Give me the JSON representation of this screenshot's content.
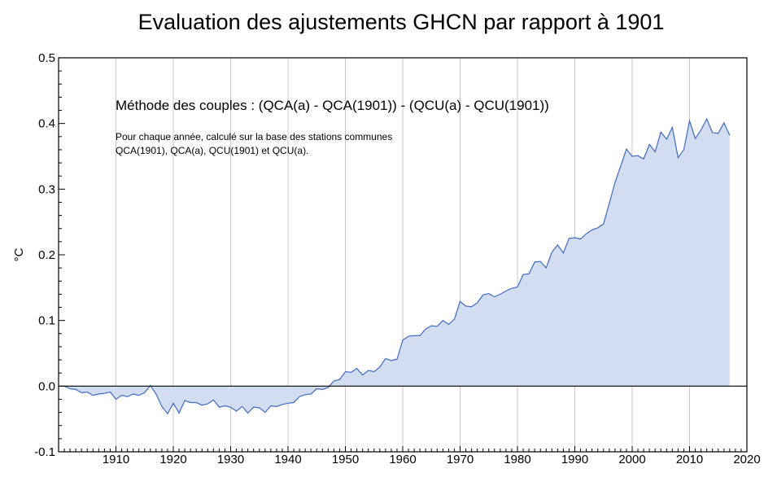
{
  "chart_data": {
    "type": "area",
    "title": "Evaluation des ajustements GHCN par rapport à 1901",
    "ylabel": "°C",
    "xlabel": "",
    "annotation_main": "Méthode des couples : (QCA(a) - QCA(1901)) - (QCU(a) - QCU(1901))",
    "annotation_sub": [
      "Pour chaque année, calculé sur la base des stations communes",
      "QCA(1901), QCA(a), QCU(1901) et QCU(a)."
    ],
    "xlim": [
      1900,
      2020
    ],
    "ylim": [
      -0.1,
      0.5
    ],
    "x_ticks": [
      1910,
      1920,
      1930,
      1940,
      1950,
      1960,
      1970,
      1980,
      1990,
      2000,
      2010,
      2020
    ],
    "y_ticks": [
      -0.1,
      0.0,
      0.1,
      0.2,
      0.3,
      0.4,
      0.5
    ],
    "y_tick_labels": [
      "-0.1",
      "0.0",
      "0.1",
      "0.2",
      "0.3",
      "0.4",
      "0.5"
    ],
    "grid": true,
    "series": [
      {
        "x": [
          1901,
          1902,
          1903,
          1904,
          1905,
          1906,
          1907,
          1908,
          1909,
          1910,
          1911,
          1912,
          1913,
          1914,
          1915,
          1916,
          1917,
          1918,
          1919,
          1920,
          1921,
          1922,
          1923,
          1924,
          1925,
          1926,
          1927,
          1928,
          1929,
          1930,
          1931,
          1932,
          1933,
          1934,
          1935,
          1936,
          1937,
          1938,
          1939,
          1940,
          1941,
          1942,
          1943,
          1944,
          1945,
          1946,
          1947,
          1948,
          1949,
          1950,
          1951,
          1952,
          1953,
          1954,
          1955,
          1956,
          1957,
          1958,
          1959,
          1960,
          1961,
          1962,
          1963,
          1964,
          1965,
          1966,
          1967,
          1968,
          1969,
          1970,
          1971,
          1972,
          1973,
          1974,
          1975,
          1976,
          1977,
          1978,
          1979,
          1980,
          1981,
          1982,
          1983,
          1984,
          1985,
          1986,
          1987,
          1988,
          1989,
          1990,
          1991,
          1992,
          1993,
          1994,
          1995,
          1996,
          1997,
          1998,
          1999,
          2000,
          2001,
          2002,
          2003,
          2004,
          2005,
          2006,
          2007,
          2008,
          2009,
          2010,
          2011,
          2012,
          2013,
          2014,
          2015,
          2016,
          2017
        ],
        "values": [
          0.0,
          -0.004,
          -0.005,
          -0.01,
          -0.009,
          -0.014,
          -0.012,
          -0.011,
          -0.009,
          -0.02,
          -0.014,
          -0.016,
          -0.012,
          -0.014,
          -0.01,
          0.001,
          -0.012,
          -0.031,
          -0.042,
          -0.026,
          -0.041,
          -0.022,
          -0.025,
          -0.025,
          -0.029,
          -0.027,
          -0.021,
          -0.032,
          -0.03,
          -0.032,
          -0.038,
          -0.031,
          -0.041,
          -0.032,
          -0.033,
          -0.04,
          -0.03,
          -0.031,
          -0.028,
          -0.026,
          -0.025,
          -0.016,
          -0.013,
          -0.012,
          -0.004,
          -0.005,
          -0.002,
          0.008,
          0.01,
          0.022,
          0.021,
          0.027,
          0.017,
          0.024,
          0.022,
          0.029,
          0.042,
          0.039,
          0.041,
          0.07,
          0.076,
          0.077,
          0.077,
          0.087,
          0.092,
          0.091,
          0.1,
          0.094,
          0.102,
          0.129,
          0.122,
          0.121,
          0.127,
          0.139,
          0.141,
          0.136,
          0.14,
          0.145,
          0.149,
          0.151,
          0.17,
          0.171,
          0.189,
          0.19,
          0.18,
          0.204,
          0.215,
          0.203,
          0.225,
          0.226,
          0.224,
          0.232,
          0.238,
          0.241,
          0.247,
          0.278,
          0.31,
          0.335,
          0.361,
          0.35,
          0.351,
          0.346,
          0.368,
          0.357,
          0.387,
          0.376,
          0.394,
          0.348,
          0.36,
          0.404,
          0.377,
          0.39,
          0.407,
          0.386,
          0.385,
          0.401,
          0.382
        ]
      }
    ]
  }
}
